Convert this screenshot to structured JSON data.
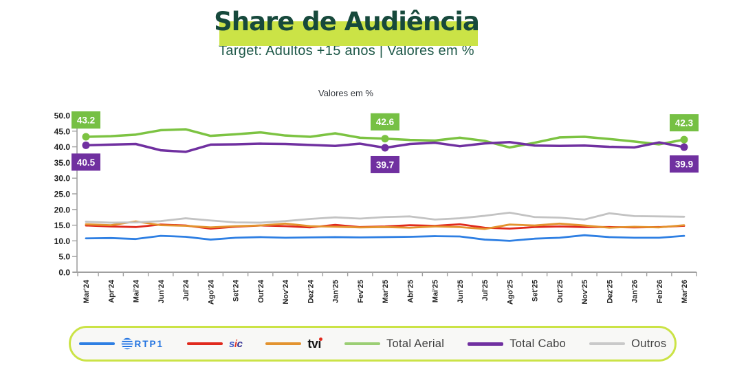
{
  "page": {
    "background": "#ffffff",
    "accent_lime": "#cbe346"
  },
  "header": {
    "title": "Share de Audiência",
    "subtitle": "Target: Adultos +15 anos | Valores em %",
    "title_color": "#17493c",
    "subtitle_color": "#1d5747"
  },
  "chart_data": {
    "type": "line",
    "title": "Valores em %",
    "xlabel": "",
    "ylabel": "",
    "ylim": [
      0,
      50
    ],
    "ytick_step": 5,
    "grid": false,
    "legend_position": "bottom",
    "axis_color": "#a0a0a0",
    "tick_label_color": "#1f1f1f",
    "categories": [
      "Mar'24",
      "Apr'24",
      "Mai'24",
      "Jun'24",
      "Jul'24",
      "Ago'24",
      "Set'24",
      "Out'24",
      "Nov'24",
      "Dez'24",
      "Jan'25",
      "Fev'25",
      "Mar'25",
      "Abr'25",
      "Mai'25",
      "Jun'25",
      "Jul'25",
      "Ago'25",
      "Set'25",
      "Out'25",
      "Nov'25",
      "Dez'25",
      "Jan'26",
      "Feb'26",
      "Mar'26"
    ],
    "series": [
      {
        "name": "RTP1",
        "color": "#2e7fe3",
        "width": 2.8,
        "values": [
          10.8,
          10.9,
          10.6,
          11.6,
          11.3,
          10.4,
          11.0,
          11.2,
          11.0,
          11.1,
          11.2,
          11.1,
          11.2,
          11.3,
          11.5,
          11.4,
          10.4,
          10.0,
          10.7,
          11.0,
          11.8,
          11.2,
          11.0,
          11.0,
          11.6
        ]
      },
      {
        "name": "SIC",
        "color": "#e02a1d",
        "width": 2.8,
        "values": [
          14.9,
          14.6,
          14.4,
          15.2,
          14.9,
          13.9,
          14.5,
          14.9,
          14.7,
          14.3,
          15.1,
          14.4,
          14.6,
          15.0,
          14.8,
          15.3,
          14.2,
          13.9,
          14.4,
          14.6,
          14.4,
          14.4,
          14.3,
          14.4,
          14.8
        ]
      },
      {
        "name": "TVI",
        "color": "#e3932f",
        "width": 2.8,
        "values": [
          15.3,
          15.0,
          16.2,
          15.0,
          14.8,
          14.3,
          14.7,
          14.9,
          15.5,
          14.7,
          14.5,
          14.3,
          14.4,
          14.2,
          14.6,
          14.4,
          13.8,
          15.2,
          14.9,
          15.5,
          14.9,
          14.2,
          14.5,
          14.3,
          15.0
        ]
      },
      {
        "name": "Total Aerial",
        "color": "#7cc342",
        "width": 3.5,
        "markers_at": [
          0,
          12,
          24
        ],
        "values": [
          43.2,
          43.4,
          43.9,
          45.3,
          45.6,
          43.5,
          44.0,
          44.6,
          43.6,
          43.2,
          44.3,
          42.9,
          42.6,
          42.2,
          42.0,
          42.9,
          41.9,
          39.8,
          41.3,
          43.0,
          43.2,
          42.5,
          41.7,
          40.8,
          42.3
        ]
      },
      {
        "name": "Total Cabo",
        "color": "#7030a0",
        "width": 3.5,
        "markers_at": [
          0,
          12,
          24
        ],
        "values": [
          40.5,
          40.7,
          40.9,
          38.9,
          38.4,
          40.7,
          40.8,
          41.0,
          40.9,
          40.6,
          40.3,
          41.0,
          39.7,
          40.9,
          41.3,
          40.2,
          41.1,
          41.5,
          40.4,
          40.3,
          40.4,
          40.0,
          39.8,
          41.4,
          39.9
        ]
      },
      {
        "name": "Outros",
        "color": "#c3c3c3",
        "width": 2.8,
        "values": [
          16.1,
          15.8,
          15.9,
          16.3,
          17.2,
          16.5,
          15.9,
          15.8,
          16.3,
          17.0,
          17.5,
          17.1,
          17.6,
          17.8,
          16.8,
          17.2,
          18.0,
          19.0,
          17.6,
          17.4,
          16.8,
          18.8,
          17.9,
          17.8,
          17.7
        ]
      }
    ],
    "annotations": [
      {
        "series": "Total Aerial",
        "index": 0,
        "text": "43.2",
        "placement": "above",
        "bg": "#76c044",
        "text_color": "#ffffff"
      },
      {
        "series": "Total Cabo",
        "index": 0,
        "text": "40.5",
        "placement": "below",
        "bg": "#7030a0",
        "text_color": "#ffffff"
      },
      {
        "series": "Total Aerial",
        "index": 12,
        "text": "42.6",
        "placement": "above",
        "bg": "#76c044",
        "text_color": "#ffffff"
      },
      {
        "series": "Total Cabo",
        "index": 12,
        "text": "39.7",
        "placement": "below",
        "bg": "#7030a0",
        "text_color": "#ffffff"
      },
      {
        "series": "Total Aerial",
        "index": 24,
        "text": "42.3",
        "placement": "above",
        "bg": "#76c044",
        "text_color": "#ffffff"
      },
      {
        "series": "Total Cabo",
        "index": 24,
        "text": "39.9",
        "placement": "below",
        "bg": "#7030a0",
        "text_color": "#ffffff"
      }
    ]
  },
  "legend": {
    "border_color": "#cbe346",
    "items": [
      {
        "label": "RTP1",
        "logo": "rtp1",
        "line_color": "#2e7fe3",
        "logo_color": "#2273e0"
      },
      {
        "label": "sic",
        "logo": "sic",
        "line_color": "#e02a1d"
      },
      {
        "label": "tvi",
        "logo": "tvi",
        "line_color": "#e3932f"
      },
      {
        "label": "Total Aerial",
        "logo": "text",
        "line_color": "#9bce74"
      },
      {
        "label": "Total Cabo",
        "logo": "text",
        "line_color": "#7030a0",
        "thick": true
      },
      {
        "label": "Outros",
        "logo": "text",
        "line_color": "#c9c9c9"
      }
    ]
  }
}
